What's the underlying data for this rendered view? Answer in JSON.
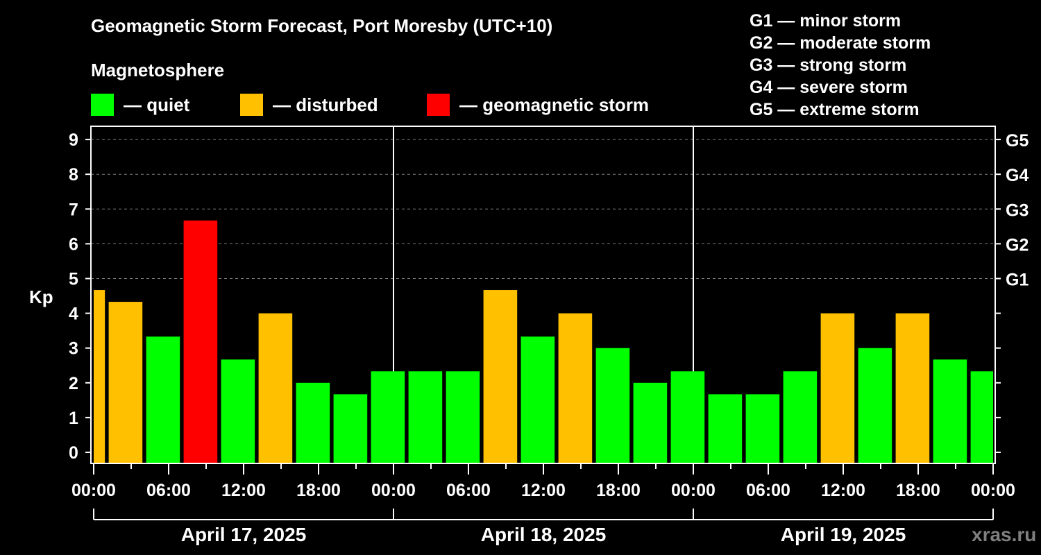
{
  "header": {
    "title": "Geomagnetic Storm Forecast, Port Moresby (UTC+10)",
    "subtitle": "Magnetosphere"
  },
  "legend": [
    {
      "label": "— quiet",
      "color": "#00ff00"
    },
    {
      "label": "— disturbed",
      "color": "#ffc000"
    },
    {
      "label": "— geomagnetic storm",
      "color": "#ff0000"
    }
  ],
  "g_scale": [
    "G1 — minor storm",
    "G2 — moderate storm",
    "G3 — strong storm",
    "G4 — severe storm",
    "G5 — extreme storm"
  ],
  "watermark": "xras.ru",
  "chart_data": {
    "type": "bar",
    "title": "Geomagnetic Storm Forecast, Port Moresby (UTC+10)",
    "xlabel": "",
    "ylabel": "Kp",
    "ylim": [
      0,
      9
    ],
    "yticks": [
      0,
      1,
      2,
      3,
      4,
      5,
      6,
      7,
      8,
      9
    ],
    "right_axis_ticks": [
      {
        "value": 5,
        "label": "G1"
      },
      {
        "value": 6,
        "label": "G2"
      },
      {
        "value": 7,
        "label": "G3"
      },
      {
        "value": 8,
        "label": "G4"
      },
      {
        "value": 9,
        "label": "G5"
      }
    ],
    "grid": "dashed horizontal lines at Kp 5–9",
    "x_tick_labels": [
      "00:00",
      "06:00",
      "12:00",
      "18:00",
      "00:00",
      "06:00",
      "12:00",
      "18:00",
      "00:00",
      "06:00",
      "12:00",
      "18:00",
      "00:00"
    ],
    "days": [
      "April 17, 2025",
      "April 18, 2025",
      "April 19, 2025"
    ],
    "colors": {
      "quiet": "#00ff00",
      "disturbed": "#ffc000",
      "storm": "#ff0000"
    },
    "bars": [
      {
        "start_h": 0,
        "end_h": 0.9,
        "value": 4.67,
        "status": "disturbed"
      },
      {
        "start_h": 1.2,
        "end_h": 3.9,
        "value": 4.33,
        "status": "disturbed"
      },
      {
        "start_h": 4.2,
        "end_h": 6.9,
        "value": 3.33,
        "status": "quiet"
      },
      {
        "start_h": 7.2,
        "end_h": 9.9,
        "value": 6.67,
        "status": "storm"
      },
      {
        "start_h": 10.2,
        "end_h": 12.9,
        "value": 2.67,
        "status": "quiet"
      },
      {
        "start_h": 13.2,
        "end_h": 15.9,
        "value": 4.0,
        "status": "disturbed"
      },
      {
        "start_h": 16.2,
        "end_h": 18.9,
        "value": 2.0,
        "status": "quiet"
      },
      {
        "start_h": 19.2,
        "end_h": 21.9,
        "value": 1.67,
        "status": "quiet"
      },
      {
        "start_h": 22.2,
        "end_h": 24.9,
        "value": 2.33,
        "status": "quiet"
      },
      {
        "start_h": 25.2,
        "end_h": 27.9,
        "value": 2.33,
        "status": "quiet"
      },
      {
        "start_h": 28.2,
        "end_h": 30.9,
        "value": 2.33,
        "status": "quiet"
      },
      {
        "start_h": 31.2,
        "end_h": 33.9,
        "value": 4.67,
        "status": "disturbed"
      },
      {
        "start_h": 34.2,
        "end_h": 36.9,
        "value": 3.33,
        "status": "quiet"
      },
      {
        "start_h": 37.2,
        "end_h": 39.9,
        "value": 4.0,
        "status": "disturbed"
      },
      {
        "start_h": 40.2,
        "end_h": 42.9,
        "value": 3.0,
        "status": "quiet"
      },
      {
        "start_h": 43.2,
        "end_h": 45.9,
        "value": 2.0,
        "status": "quiet"
      },
      {
        "start_h": 46.2,
        "end_h": 48.9,
        "value": 2.33,
        "status": "quiet"
      },
      {
        "start_h": 49.2,
        "end_h": 51.9,
        "value": 1.67,
        "status": "quiet"
      },
      {
        "start_h": 52.2,
        "end_h": 54.9,
        "value": 1.67,
        "status": "quiet"
      },
      {
        "start_h": 55.2,
        "end_h": 57.9,
        "value": 2.33,
        "status": "quiet"
      },
      {
        "start_h": 58.2,
        "end_h": 60.9,
        "value": 4.0,
        "status": "disturbed"
      },
      {
        "start_h": 61.2,
        "end_h": 63.9,
        "value": 3.0,
        "status": "quiet"
      },
      {
        "start_h": 64.2,
        "end_h": 66.9,
        "value": 4.0,
        "status": "disturbed"
      },
      {
        "start_h": 67.2,
        "end_h": 69.9,
        "value": 2.67,
        "status": "quiet"
      },
      {
        "start_h": 70.2,
        "end_h": 72.0,
        "value": 2.33,
        "status": "quiet"
      }
    ]
  }
}
